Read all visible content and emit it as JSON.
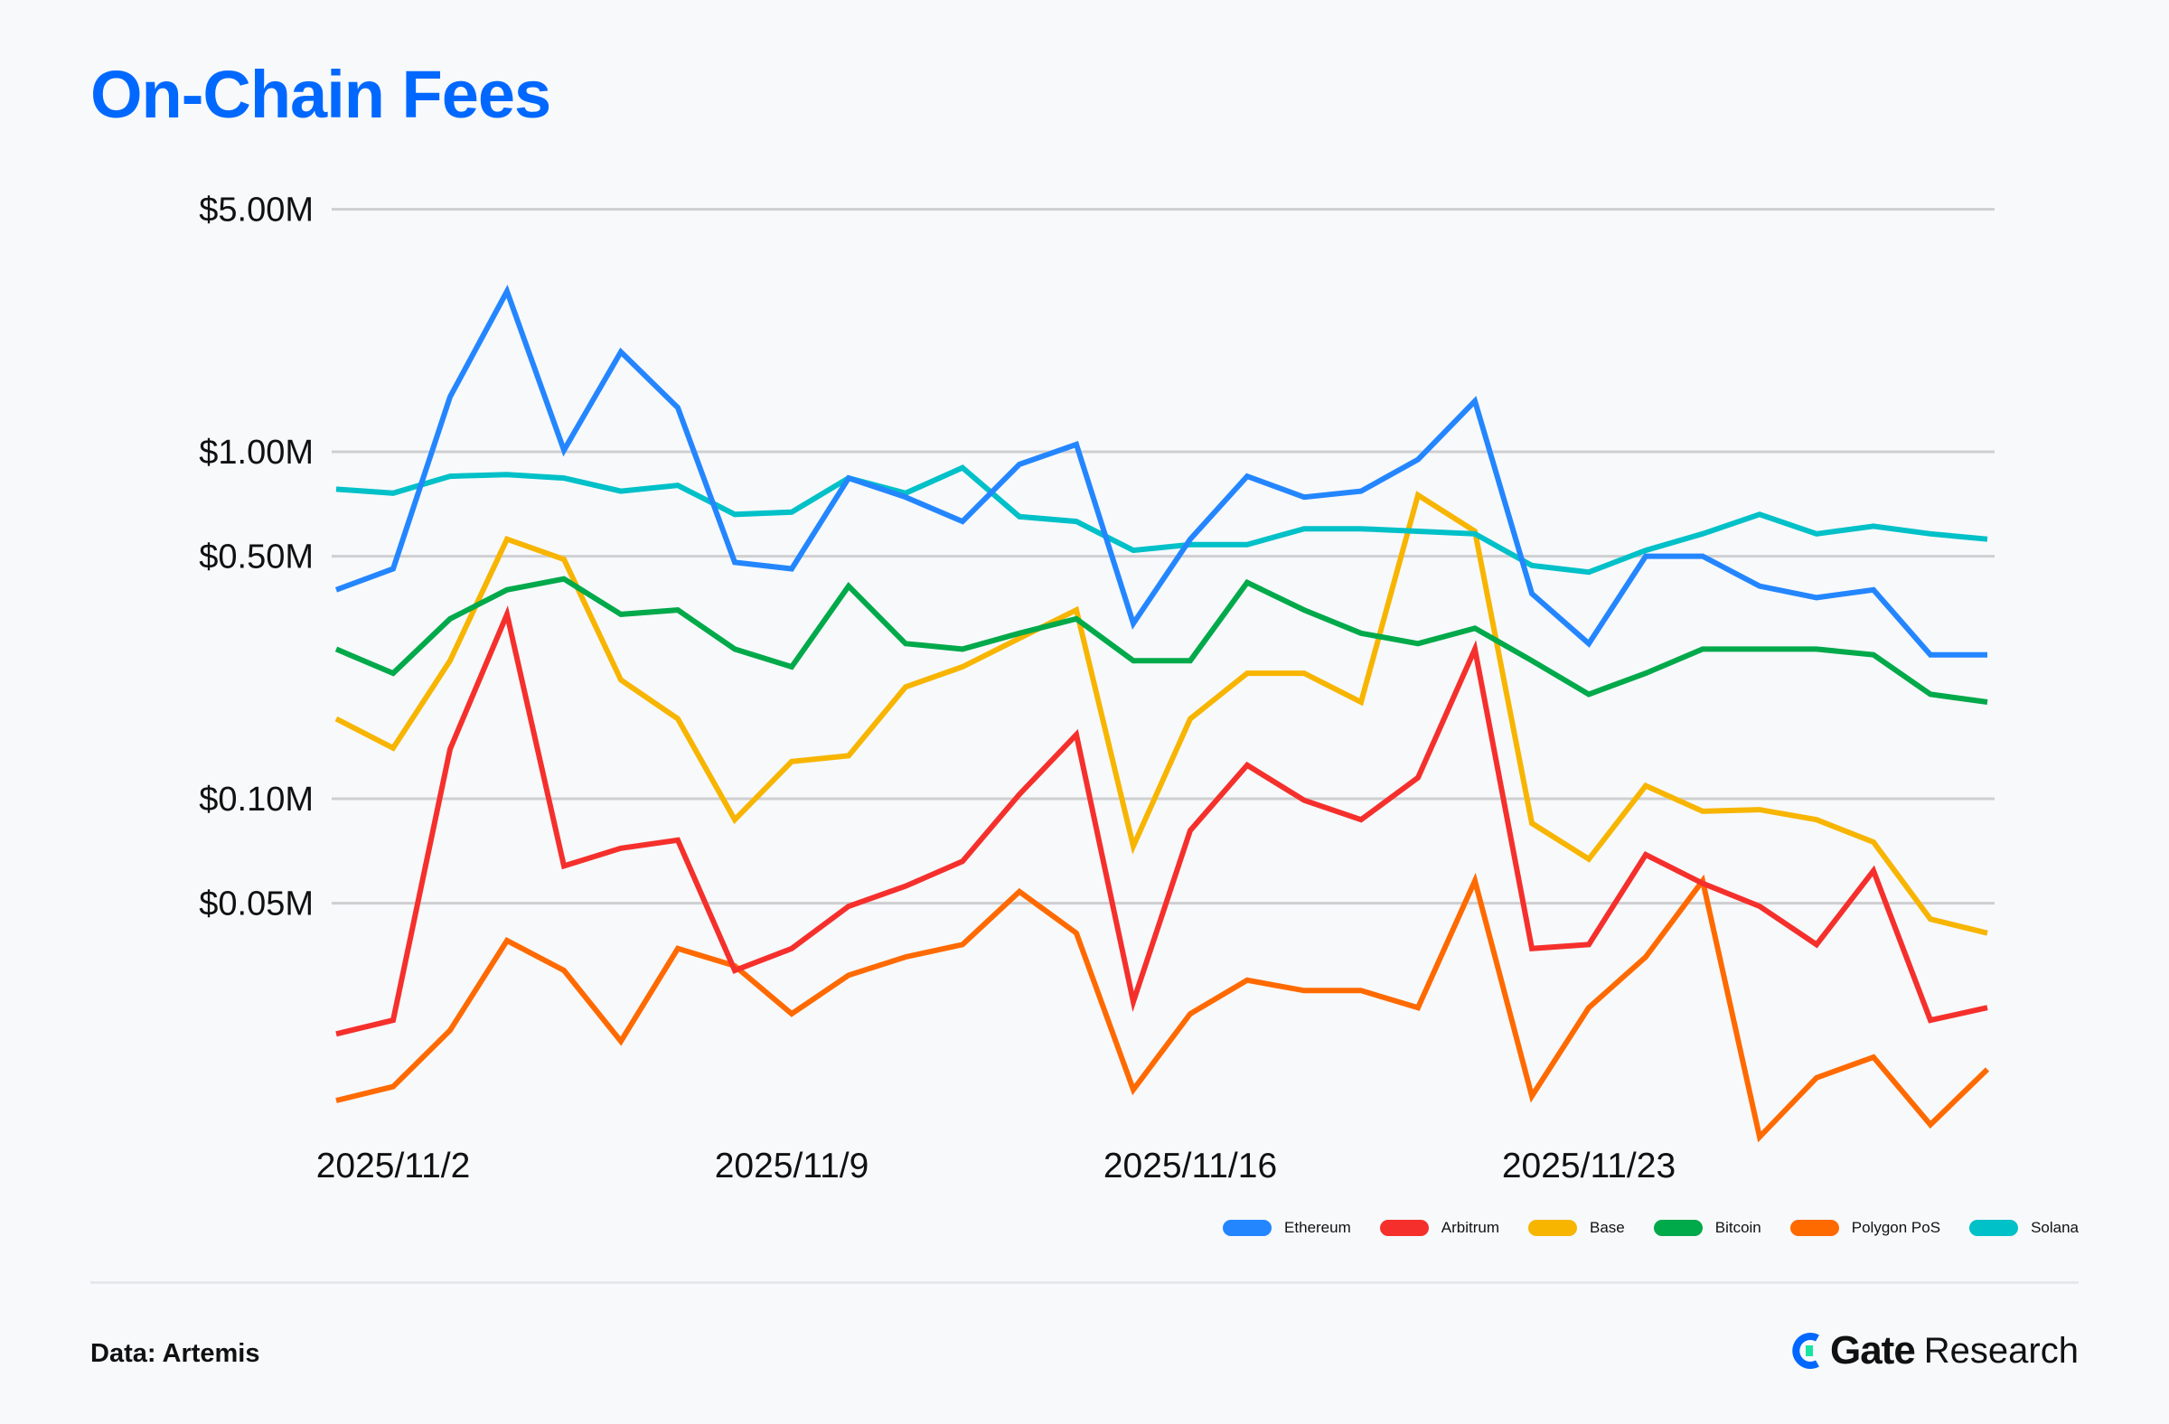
{
  "header": {
    "title": "On-Chain Fees"
  },
  "footer": {
    "source": "Data: Artemis",
    "brand_gate": "Gate",
    "brand_research": "Research"
  },
  "chart_data": {
    "type": "line",
    "title": "On-Chain Fees",
    "xlabel": "",
    "ylabel": "",
    "yscale": "log",
    "ylim": [
      0.01,
      5.0
    ],
    "grid": true,
    "legend_position": "bottom-right",
    "y_ticks": [
      {
        "value": 5.0,
        "label": "$5.00M"
      },
      {
        "value": 1.0,
        "label": "$1.00M"
      },
      {
        "value": 0.5,
        "label": "$0.50M"
      },
      {
        "value": 0.1,
        "label": "$0.10M"
      },
      {
        "value": 0.05,
        "label": "$0.05M"
      }
    ],
    "x": [
      "2025/11/1",
      "2025/11/2",
      "2025/11/3",
      "2025/11/4",
      "2025/11/5",
      "2025/11/6",
      "2025/11/7",
      "2025/11/8",
      "2025/11/9",
      "2025/11/10",
      "2025/11/11",
      "2025/11/12",
      "2025/11/13",
      "2025/11/14",
      "2025/11/15",
      "2025/11/16",
      "2025/11/17",
      "2025/11/18",
      "2025/11/19",
      "2025/11/20",
      "2025/11/21",
      "2025/11/22",
      "2025/11/23",
      "2025/11/24",
      "2025/11/25",
      "2025/11/26",
      "2025/11/27",
      "2025/11/28",
      "2025/11/29",
      "2025/11/30"
    ],
    "x_tick_labels": [
      {
        "index": 1,
        "label": "2025/11/2"
      },
      {
        "index": 8,
        "label": "2025/11/9"
      },
      {
        "index": 15,
        "label": "2025/11/16"
      },
      {
        "index": 22,
        "label": "2025/11/23"
      }
    ],
    "units": "$M",
    "series": [
      {
        "name": "Ethereum",
        "color": "#2486ff",
        "values": [
          0.4,
          0.46,
          1.44,
          2.9,
          1.01,
          1.94,
          1.34,
          0.48,
          0.46,
          0.84,
          0.74,
          0.63,
          0.92,
          1.05,
          0.32,
          0.56,
          0.85,
          0.74,
          0.77,
          0.95,
          1.4,
          0.39,
          0.28,
          0.5,
          0.5,
          0.41,
          0.38,
          0.4,
          0.26,
          0.26
        ]
      },
      {
        "name": "Arbitrum",
        "color": "#f5302c",
        "values": [
          0.021,
          0.023,
          0.139,
          0.34,
          0.064,
          0.072,
          0.076,
          0.032,
          0.037,
          0.049,
          0.056,
          0.066,
          0.103,
          0.153,
          0.026,
          0.081,
          0.125,
          0.099,
          0.087,
          0.115,
          0.27,
          0.037,
          0.038,
          0.069,
          0.057,
          0.049,
          0.038,
          0.062,
          0.023,
          0.025
        ]
      },
      {
        "name": "Base",
        "color": "#f7b500",
        "values": [
          0.17,
          0.14,
          0.25,
          0.56,
          0.49,
          0.22,
          0.17,
          0.087,
          0.128,
          0.133,
          0.21,
          0.24,
          0.29,
          0.35,
          0.073,
          0.17,
          0.23,
          0.23,
          0.19,
          0.75,
          0.59,
          0.085,
          0.067,
          0.109,
          0.092,
          0.093,
          0.087,
          0.075,
          0.045,
          0.041
        ]
      },
      {
        "name": "Bitcoin",
        "color": "#00a94a",
        "values": [
          0.27,
          0.23,
          0.33,
          0.4,
          0.43,
          0.34,
          0.35,
          0.27,
          0.24,
          0.41,
          0.28,
          0.27,
          0.3,
          0.33,
          0.25,
          0.25,
          0.42,
          0.35,
          0.3,
          0.28,
          0.31,
          0.25,
          0.2,
          0.23,
          0.27,
          0.27,
          0.27,
          0.26,
          0.2,
          0.19
        ]
      },
      {
        "name": "Polygon PoS",
        "color": "#ff6a00",
        "values": [
          0.0135,
          0.0148,
          0.0215,
          0.039,
          0.032,
          0.02,
          0.037,
          0.033,
          0.024,
          0.031,
          0.035,
          0.038,
          0.054,
          0.041,
          0.0145,
          0.024,
          0.03,
          0.028,
          0.028,
          0.025,
          0.058,
          0.0139,
          0.025,
          0.035,
          0.058,
          0.0106,
          0.0157,
          0.018,
          0.0115,
          0.0166
        ]
      },
      {
        "name": "Solana",
        "color": "#00c0c8",
        "values": [
          0.78,
          0.76,
          0.85,
          0.86,
          0.84,
          0.77,
          0.8,
          0.66,
          0.67,
          0.84,
          0.76,
          0.9,
          0.65,
          0.63,
          0.52,
          0.54,
          0.54,
          0.6,
          0.6,
          0.59,
          0.58,
          0.47,
          0.45,
          0.52,
          0.58,
          0.66,
          0.58,
          0.61,
          0.58,
          0.56
        ]
      }
    ]
  }
}
